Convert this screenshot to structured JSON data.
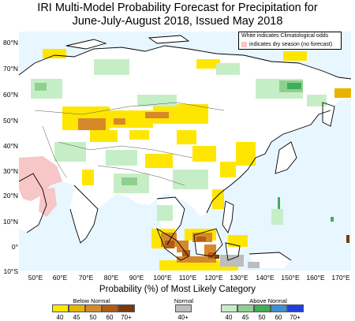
{
  "title_line1": "IRI Multi-Model Probability Forecast for Precipitation for",
  "title_line2": "June-July-August 2018, Issued May 2018",
  "legend_note1": "White indicates Climatological odds",
  "legend_note2": "indicates dry season (no forecast)",
  "lat_labels": [
    "80°N",
    "70°N",
    "60°N",
    "50°N",
    "40°N",
    "30°N",
    "20°N",
    "10°N",
    "0°",
    "10°S"
  ],
  "lon_labels": [
    "50°E",
    "60°E",
    "70°E",
    "80°E",
    "90°E",
    "100°E",
    "110°E",
    "120°E",
    "130°E",
    "140°E",
    "150°E",
    "160°E",
    "170°E"
  ],
  "colorbar_title": "Probability (%) of Most Likely Category",
  "below_normal_label": "Below Normal",
  "normal_label": "Normal",
  "above_normal_label": "Above Normal",
  "below_ticks": [
    "40",
    "45",
    "50",
    "60",
    "70+"
  ],
  "normal_ticks": [
    "40+"
  ],
  "above_ticks": [
    "40",
    "45",
    "50",
    "60",
    "70+"
  ],
  "colors": {
    "ocean": "#e8f6ff",
    "below_40": "#ffe600",
    "below_45": "#e8b400",
    "below_50": "#d7892a",
    "below_60": "#b45a14",
    "below_70": "#7a3a0a",
    "normal_40": "#bdbdbd",
    "above_40": "#c6eec6",
    "above_45": "#8fd08f",
    "above_50": "#3fae5a",
    "above_60": "#3e8fd6",
    "above_70": "#1f3fe0",
    "dry_season": "#f7c6c6"
  }
}
